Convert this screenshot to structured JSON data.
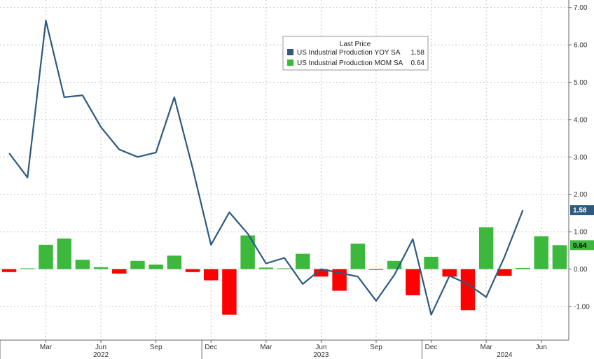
{
  "chart_data": {
    "type": "bar",
    "legend": {
      "title": "Last Price",
      "placement": "top-center",
      "entries": [
        {
          "label": "US Industrial Production YOY SA",
          "value": "1.58",
          "color": "#2e5a80"
        },
        {
          "label": "US Industrial Production MOM SA",
          "value": "0.64",
          "color": "#3cb83c"
        }
      ]
    },
    "y_axis": {
      "position": "right",
      "range": [
        -1.9,
        7.2
      ],
      "ticks": [
        "7.00",
        "6.00",
        "5.00",
        "4.00",
        "3.00",
        "2.00",
        "1.00",
        "0.00",
        "-1.00"
      ],
      "tick_values": [
        7,
        6,
        5,
        4,
        3,
        2,
        1,
        0,
        -1
      ]
    },
    "x_axis": {
      "months": [
        "Mar",
        "Jun",
        "Sep",
        "Dec",
        "Mar",
        "Jun",
        "Sep",
        "Dec",
        "Mar",
        "Jun"
      ],
      "month_indices": [
        2,
        5,
        8,
        11,
        14,
        17,
        20,
        23,
        26,
        29
      ],
      "years": [
        "2022",
        "2023",
        "2024"
      ],
      "year_indices": [
        5,
        17,
        27
      ],
      "range": [
        -0.5,
        30.5
      ]
    },
    "grid": true,
    "series": [
      {
        "name": "US Industrial Production YOY SA",
        "kind": "line",
        "color": "#2e5a80",
        "values": [
          3.1,
          2.45,
          6.65,
          4.6,
          4.65,
          3.8,
          3.2,
          3.0,
          3.12,
          4.6,
          2.7,
          0.65,
          1.52,
          0.95,
          0.15,
          0.3,
          -0.4,
          0.0,
          -0.1,
          -0.2,
          -0.85,
          -0.15,
          0.8,
          -1.22,
          -0.18,
          -0.4,
          -0.75,
          0.33,
          1.58
        ]
      },
      {
        "name": "US Industrial Production MOM SA",
        "kind": "bar",
        "color_pos": "#3cb83c",
        "color_neg": "#ff0000",
        "values": [
          -0.08,
          0.02,
          0.65,
          0.82,
          0.25,
          0.05,
          -0.12,
          0.22,
          0.12,
          0.36,
          -0.08,
          -0.3,
          -1.22,
          0.9,
          0.04,
          0.02,
          0.41,
          -0.2,
          -0.58,
          0.68,
          -0.02,
          0.22,
          -0.7,
          0.33,
          -0.2,
          -1.1,
          1.12,
          -0.18,
          0.03,
          0.88,
          0.64
        ]
      }
    ],
    "last_value_badges": [
      {
        "text": "1.58",
        "value": 1.58,
        "color": "#2e5a80"
      },
      {
        "text": "0.64",
        "value": 0.64,
        "color": "#3cb83c"
      }
    ]
  }
}
